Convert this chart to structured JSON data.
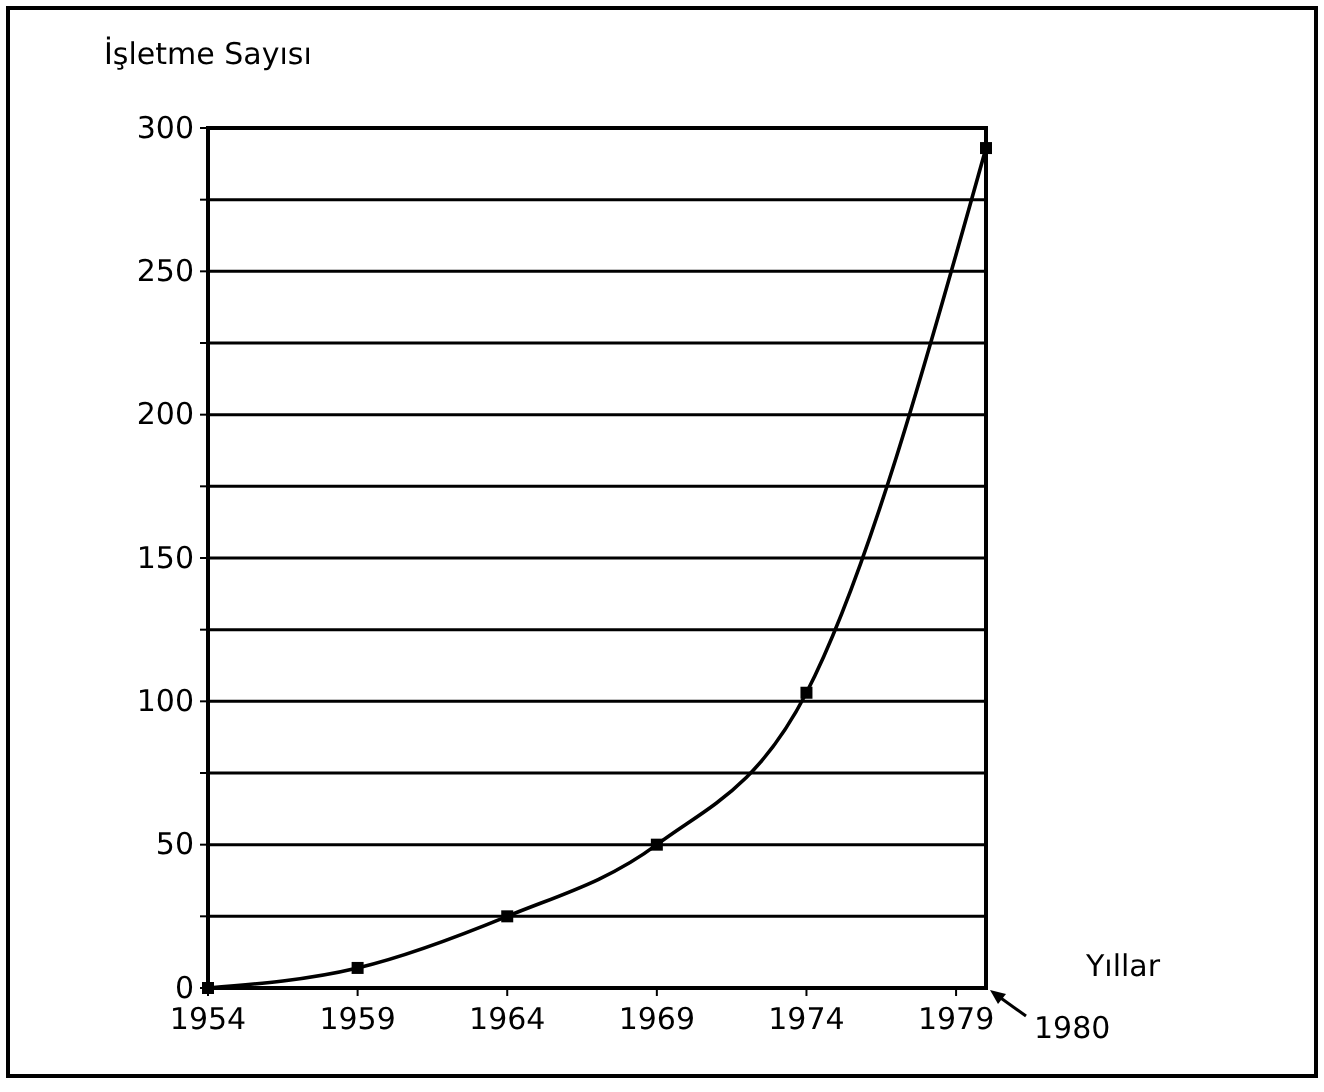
{
  "chart_data": {
    "type": "line",
    "ylabel": "İşletme Sayısı",
    "xlabel": "Yıllar",
    "x": [
      1954,
      1959,
      1964,
      1969,
      1974,
      1980
    ],
    "values": [
      0,
      7,
      25,
      50,
      103,
      293
    ],
    "color": "#000000",
    "marker": "square",
    "line_style": "solid",
    "grid": "y",
    "xlim": [
      1954,
      1980
    ],
    "xticks": [
      1954,
      1959,
      1964,
      1969,
      1974,
      1979
    ],
    "ylim": [
      0,
      300
    ],
    "yticks": [
      0,
      {
        "value": 25,
        "label": null
      },
      50,
      {
        "value": 75,
        "label": null
      },
      100,
      {
        "value": 125,
        "label": null
      },
      150,
      {
        "value": 175,
        "label": null
      },
      200,
      {
        "value": 225,
        "label": null
      },
      250,
      {
        "value": 275,
        "label": null
      },
      300
    ],
    "annotations": [
      "1980"
    ]
  }
}
